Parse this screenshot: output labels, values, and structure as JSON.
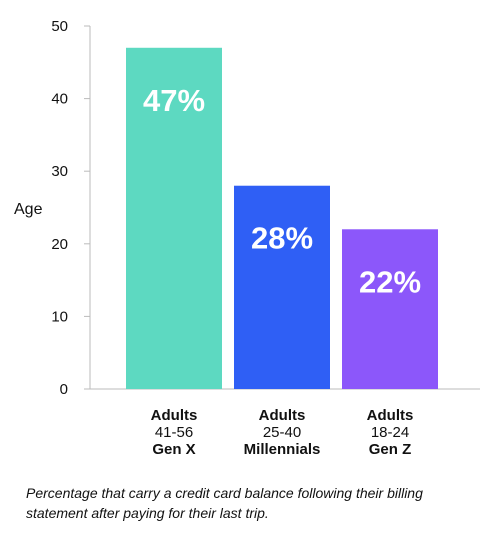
{
  "chart_data": {
    "type": "bar",
    "ylabel": "Age",
    "xlabel": "",
    "ylim": [
      0,
      50
    ],
    "yticks": [
      0,
      10,
      20,
      30,
      40,
      50
    ],
    "grid": false,
    "categories": [
      {
        "lines": [
          "Adults",
          "41-56"
        ],
        "group": "Gen X"
      },
      {
        "lines": [
          "Adults",
          "25-40"
        ],
        "group": "Millennials"
      },
      {
        "lines": [
          "Adults",
          "18-24"
        ],
        "group": "Gen Z"
      }
    ],
    "values": [
      47,
      28,
      22
    ],
    "data_labels": [
      "47%",
      "28%",
      "22%"
    ],
    "colors": [
      "#5dd9c1",
      "#2f5ff5",
      "#8c57fa"
    ]
  },
  "caption": "Percentage that carry a credit card balance following their billing statement after paying for their last trip."
}
